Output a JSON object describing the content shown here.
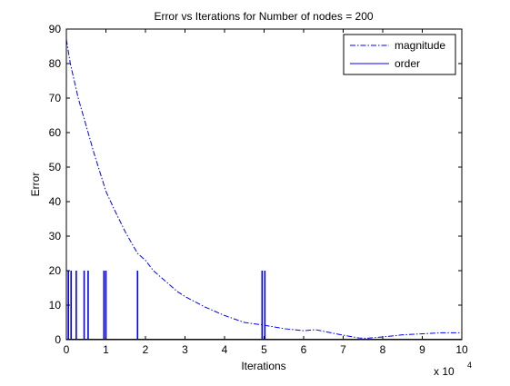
{
  "chart_data": {
    "type": "line",
    "title": "Error vs Iterations for Number of nodes = 200",
    "xlabel": "Iterations",
    "ylabel": "Error",
    "x_exponent_label": "x 10",
    "x_exponent_power": "4",
    "xlim": [
      0,
      10
    ],
    "ylim": [
      0,
      90
    ],
    "x_ticks": [
      "0",
      "1",
      "2",
      "3",
      "4",
      "5",
      "6",
      "7",
      "8",
      "9",
      "10"
    ],
    "y_ticks": [
      "0",
      "10",
      "20",
      "30",
      "40",
      "50",
      "60",
      "70",
      "80",
      "90"
    ],
    "grid": false,
    "legend": "top-right",
    "colors": {
      "series": "#0000ff",
      "axes": "#000000",
      "background": "#ffffff"
    },
    "series": [
      {
        "name": "magnitude",
        "style": "dash-dot",
        "x": [
          0,
          0.1,
          0.2,
          0.3,
          0.5,
          0.7,
          1.0,
          1.2,
          1.5,
          1.8,
          2.0,
          2.2,
          2.5,
          2.8,
          3.0,
          3.5,
          4.0,
          4.5,
          5.0,
          5.5,
          6.0,
          6.3,
          6.6,
          7.0,
          7.4,
          7.6,
          8.0,
          8.5,
          9.0,
          9.5,
          10.0
        ],
        "y": [
          87,
          80,
          75,
          70,
          62,
          54,
          43,
          38,
          31,
          25,
          23,
          20,
          17,
          14,
          12.5,
          9.5,
          7,
          5,
          4.2,
          3.2,
          2.6,
          2.9,
          2.2,
          1.3,
          0.5,
          0.4,
          0.8,
          1.4,
          1.7,
          2.0,
          2.0
        ]
      },
      {
        "name": "order",
        "style": "solid",
        "spikes": [
          {
            "x": 0.05,
            "y": 20
          },
          {
            "x": 0.12,
            "y": 20
          },
          {
            "x": 0.25,
            "y": 20
          },
          {
            "x": 0.45,
            "y": 20
          },
          {
            "x": 0.55,
            "y": 20
          },
          {
            "x": 0.95,
            "y": 20
          },
          {
            "x": 1.0,
            "y": 20
          },
          {
            "x": 1.8,
            "y": 20
          },
          {
            "x": 4.95,
            "y": 20
          },
          {
            "x": 5.02,
            "y": 20
          }
        ]
      }
    ]
  }
}
